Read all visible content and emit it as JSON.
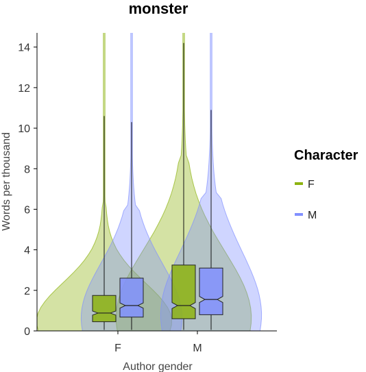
{
  "chart_data": {
    "type": "violin",
    "title": "monster",
    "xlabel": "Author gender",
    "ylabel": "Words per thousand",
    "categories": [
      "F",
      "M"
    ],
    "ylim": [
      0,
      14.7
    ],
    "yticks": [
      0,
      2,
      4,
      6,
      8,
      10,
      12,
      14
    ],
    "grid": false,
    "legend": {
      "title": "Character",
      "placement": "right",
      "entries": [
        "F",
        "M"
      ]
    },
    "series": [
      {
        "name": "F",
        "color": "#8db311",
        "boxes": [
          {
            "category": "F",
            "q1": 0.45,
            "median": 0.88,
            "q3": 1.75,
            "notch_low": 0.78,
            "notch_high": 0.98,
            "whisker_high": 10.6
          },
          {
            "category": "M",
            "q1": 0.6,
            "median": 1.25,
            "q3": 3.25,
            "notch_low": 1.1,
            "notch_high": 1.4,
            "whisker_high": 14.2
          }
        ]
      },
      {
        "name": "M",
        "color": "#8190ff",
        "boxes": [
          {
            "category": "F",
            "q1": 0.68,
            "median": 1.25,
            "q3": 2.6,
            "notch_low": 1.12,
            "notch_high": 1.38,
            "whisker_high": 10.3
          },
          {
            "category": "M",
            "q1": 0.8,
            "median": 1.55,
            "q3": 3.1,
            "notch_low": 1.4,
            "notch_high": 1.7,
            "whisker_high": 10.9
          }
        ]
      }
    ]
  }
}
